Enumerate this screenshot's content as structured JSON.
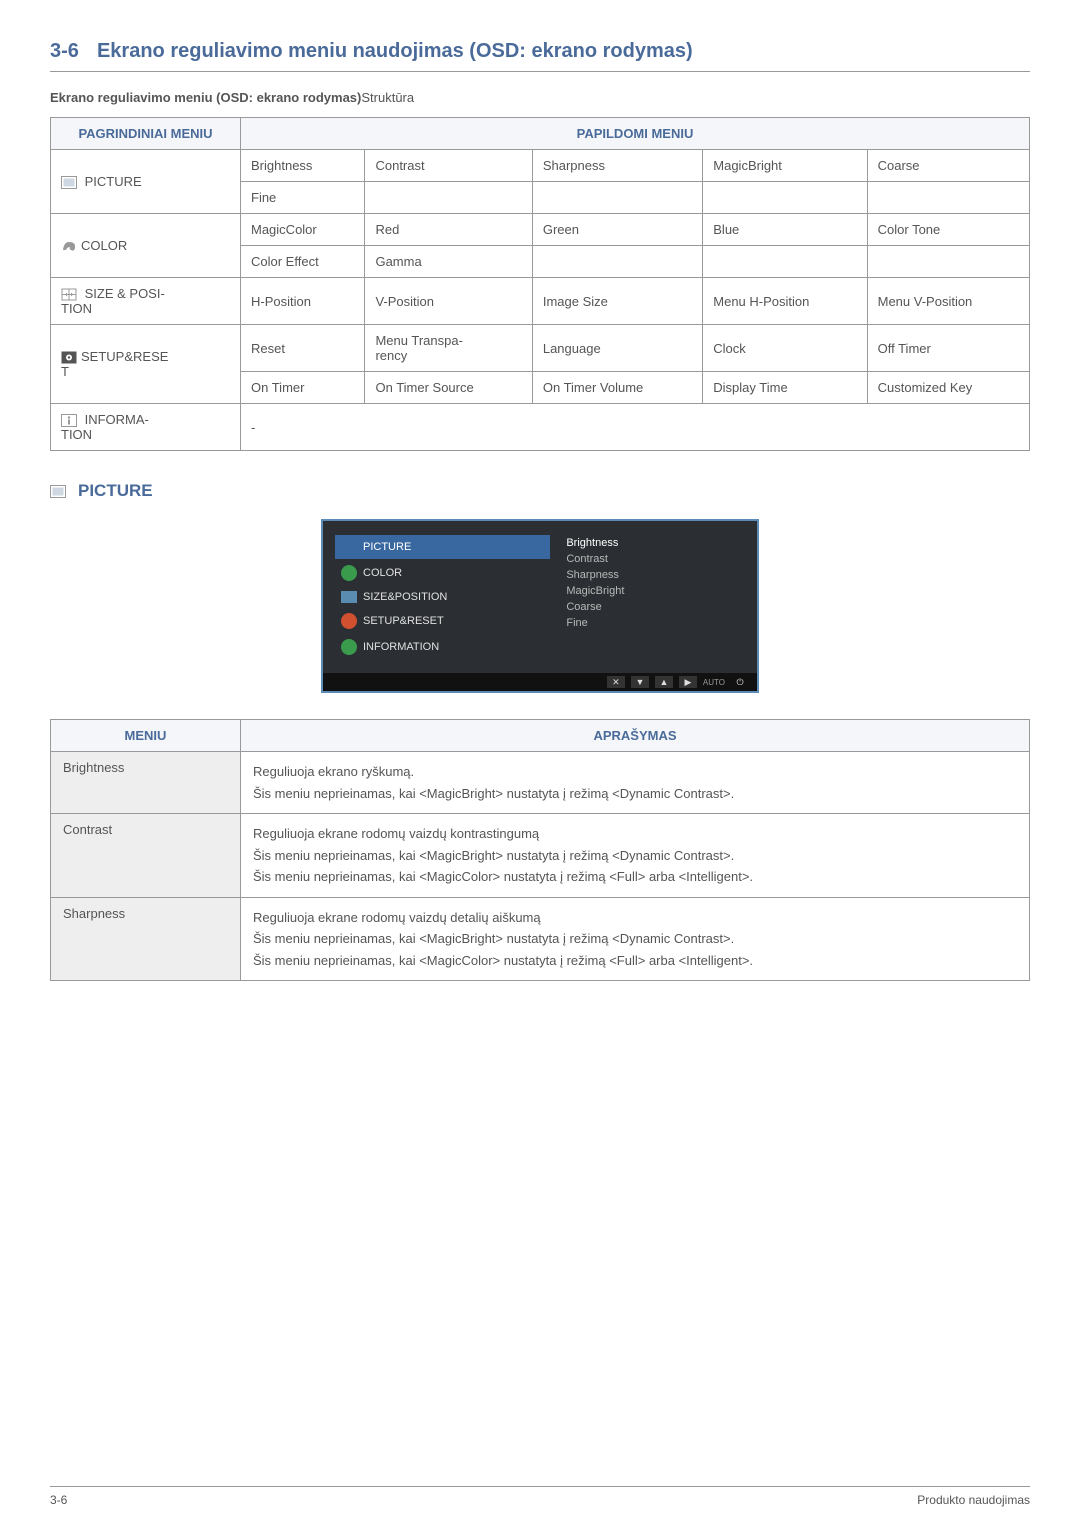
{
  "section": {
    "number": "3-6",
    "title": "Ekrano reguliavimo meniu naudojimas (OSD: ekrano rodymas)"
  },
  "subtitle_bold": "Ekrano reguliavimo meniu (OSD: ekrano rodymas)",
  "subtitle_rest": "Struktūra",
  "table1": {
    "header_main": "PAGRINDINIAI MENIU",
    "header_sub": "PAPILDOMI MENIU",
    "rows": [
      {
        "icon": "picture",
        "label": " PICTURE",
        "cells": [
          [
            "Brightness",
            "Contrast",
            "Sharpness",
            "MagicBright",
            "Coarse"
          ],
          [
            "Fine",
            "",
            "",
            "",
            ""
          ]
        ]
      },
      {
        "icon": "color",
        "label": "COLOR",
        "cells": [
          [
            "MagicColor",
            "Red",
            "Green",
            "Blue",
            "Color Tone"
          ],
          [
            "Color Effect",
            "Gamma",
            "",
            "",
            ""
          ]
        ]
      },
      {
        "icon": "size",
        "label": " SIZE & POSI-TION",
        "cells": [
          [
            "H-Position",
            "V-Position",
            "Image Size",
            "Menu H-Position",
            "Menu V-Position"
          ]
        ]
      },
      {
        "icon": "setup",
        "label": "SETUP&RESET",
        "cells": [
          [
            "Reset",
            "Menu Transpa-rency",
            "Language",
            "Clock",
            "Off Timer"
          ],
          [
            "On Timer",
            "On Timer Source",
            "On Timer Volume",
            "Display Time",
            "Customized Key"
          ]
        ]
      },
      {
        "icon": "info",
        "label": " INFORMA-TION",
        "cells": [
          [
            "-",
            "",
            "",
            "",
            ""
          ]
        ],
        "spanfull": true
      }
    ]
  },
  "picture_heading": "PICTURE",
  "osd": {
    "left": [
      {
        "label": "PICTURE",
        "sel": true,
        "icon_bg": "#3968a0"
      },
      {
        "label": "COLOR",
        "icon_bg": "#3a9b4d"
      },
      {
        "label": "SIZE&POSITION",
        "icon_bg": "#5a8bb0",
        "square": true
      },
      {
        "label": "SETUP&RESET",
        "icon_bg": "#d05030"
      },
      {
        "label": "INFORMATION",
        "icon_bg": "#3a9b4d"
      }
    ],
    "right": [
      {
        "label": "Brightness",
        "sel": true
      },
      {
        "label": "Contrast"
      },
      {
        "label": "Sharpness"
      },
      {
        "label": "MagicBright"
      },
      {
        "label": "Coarse"
      },
      {
        "label": "Fine"
      }
    ],
    "auto": "AUTO"
  },
  "table2": {
    "headers": [
      "MENIU",
      "APRAŠYMAS"
    ],
    "rows": [
      {
        "menu": "Brightness",
        "lines": [
          "Reguliuoja ekrano ryškumą.",
          "Šis meniu neprieinamas, kai <MagicBright> nustatyta į režimą <Dynamic Contrast>."
        ]
      },
      {
        "menu": "Contrast",
        "lines": [
          "Reguliuoja ekrane rodomų vaizdų kontrastingumą",
          "Šis meniu neprieinamas, kai <MagicBright> nustatyta į režimą <Dynamic Contrast>.",
          "Šis meniu neprieinamas, kai <MagicColor> nustatyta į režimą <Full> arba <Intelligent>."
        ]
      },
      {
        "menu": "Sharpness",
        "lines": [
          "Reguliuoja ekrane rodomų vaizdų detalių aiškumą",
          "Šis meniu neprieinamas, kai <MagicBright> nustatyta į režimą <Dynamic Contrast>.",
          "Šis meniu neprieinamas, kai <MagicColor> nustatyta į režimą <Full> arba <Intelligent>."
        ]
      }
    ]
  },
  "footer": {
    "left": "3-6",
    "right": "Produkto naudojimas"
  },
  "icons": {
    "picture": "<svg width='16' height='13' viewBox='0 0 16 13'><rect x='0.5' y='0.5' width='15' height='12' fill='none' stroke='#999' stroke-width='1'/><rect x='2.5' y='2.5' width='11' height='8' fill='#cfd8e2'/></svg>",
    "color": "<svg width='16' height='13' viewBox='0 0 16 13'><path d='M2 10 Q3 2 8 2 Q15 2 14 8 Q13 12 10 10 Q8 9 9 7 Q6 7 5 10 Z' fill='#999'/></svg>",
    "size": "<svg width='16' height='13' viewBox='0 0 16 13'><rect x='1' y='1' width='14' height='11' fill='none' stroke='#999'/><line x1='8' y1='1' x2='8' y2='12' stroke='#999'/><line x1='1' y1='6.5' x2='15' y2='6.5' stroke='#999'/><polygon points='4,6.5 6,4.5 6,8.5' fill='#999'/><polygon points='12,6.5 10,4.5 10,8.5' fill='#999'/></svg>",
    "setup": "<svg width='16' height='13' viewBox='0 0 16 13'><rect x='0.5' y='0.5' width='15' height='12' fill='#555'/><circle cx='8' cy='6.5' r='3' fill='#fff'/><circle cx='8' cy='6.5' r='1.2' fill='#555'/></svg>",
    "info": "<svg width='16' height='13' viewBox='0 0 16 13'><rect x='0.5' y='0.5' width='15' height='12' fill='none' stroke='#999'/><circle cx='8' cy='3.5' r='1.2' fill='#999'/><rect x='7' y='5.5' width='2' height='5' fill='#999'/></svg>"
  }
}
